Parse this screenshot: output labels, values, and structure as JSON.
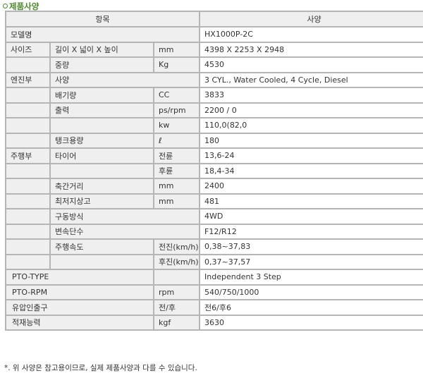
{
  "section_title": "제품사양",
  "header": {
    "item": "항목",
    "spec": "사양"
  },
  "rows": [
    {
      "c1": "모델명",
      "c2": "",
      "c3": "",
      "value": "HX1000P-2C"
    },
    {
      "c1": "사이즈",
      "c2": "길이 X 넓이 X 높이",
      "c3": "mm",
      "value": "4398 X 2253 X 2948"
    },
    {
      "c1": "",
      "c2": "중량",
      "c3": "Kg",
      "value": "4530"
    },
    {
      "c1": "엔진부",
      "c2": "사양",
      "c3": "",
      "value": "3 CYL., Water Cooled, 4 Cycle, Diesel"
    },
    {
      "c1": "",
      "c2": "배기량",
      "c3": "CC",
      "value": "3833"
    },
    {
      "c1": "",
      "c2": "출력",
      "c3": "ps/rpm",
      "value": "2200 / 0"
    },
    {
      "c1": "",
      "c2": "",
      "c3": "kw",
      "value": "110,0(82,0"
    },
    {
      "c1": "",
      "c2": "탱크용량",
      "c3": "ℓ",
      "value": "180"
    },
    {
      "c1": "주행부",
      "c2": "타이어",
      "c3": "전륜",
      "value": "13,6-24"
    },
    {
      "c1": "",
      "c2": "",
      "c3": "후륜",
      "value": "18,4-34"
    },
    {
      "c1": "",
      "c2": "축간거리",
      "c3": "mm",
      "value": "2400"
    },
    {
      "c1": "",
      "c2": "최저지상고",
      "c3": "mm",
      "value": "481"
    },
    {
      "c1": "",
      "c2": "구동방식",
      "c3": "",
      "value": "4WD"
    },
    {
      "c1": "",
      "c2": "변속단수",
      "c3": "",
      "value": "F12/R12"
    },
    {
      "c1": "",
      "c2": "주행속도",
      "c3": "전진(km/h)",
      "value": "0,38~37,83"
    },
    {
      "c1": "",
      "c2": "",
      "c3": "후진(km/h)",
      "value": "0,37~37,57"
    },
    {
      "c1": "PTO-TYPE",
      "c2": "",
      "c3": "",
      "value": "Independent 3 Step"
    },
    {
      "c1": "PTO-RPM",
      "c2": "",
      "c3": "rpm",
      "value": "540/750/1000"
    },
    {
      "c1": "유압인출구",
      "c2": "",
      "c3": "전/후",
      "value": "전6/후6"
    },
    {
      "c1": "적재능력",
      "c2": "",
      "c3": "kgf",
      "value": "3630"
    }
  ],
  "note": "*. 위 사양은 참고용이므로, 실제 제품사양과 다를 수 있습니다."
}
